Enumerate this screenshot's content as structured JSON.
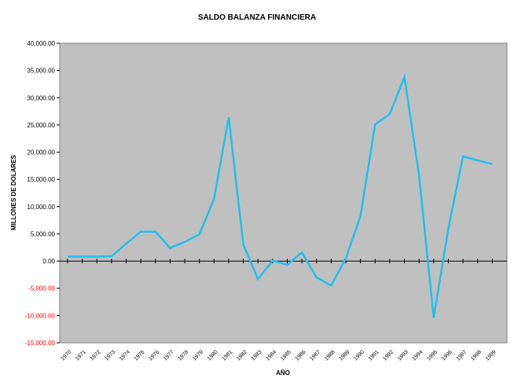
{
  "chart_data": {
    "type": "line",
    "title": "SALDO BALANZA FINANCIERA",
    "xlabel": "AÑO",
    "ylabel": "MILLONES DE DOLARES",
    "ylim": [
      -15000,
      40000
    ],
    "y_ticks": [
      -15000,
      -10000,
      -5000,
      0,
      5000,
      10000,
      15000,
      20000,
      25000,
      30000,
      35000,
      40000
    ],
    "y_tick_labels": [
      "-15,000.00",
      "-10,000.00",
      "-5,000.00",
      "0.00",
      "5,000.00",
      "10,000.00",
      "15,000.00",
      "20,000.00",
      "25,000.00",
      "30,000.00",
      "35,000.00",
      "40,000.00"
    ],
    "categories": [
      "1970",
      "1971",
      "1972",
      "1973",
      "1974",
      "1975",
      "1976",
      "1977",
      "1978",
      "1979",
      "1980",
      "1981",
      "1982",
      "1983",
      "1984",
      "1985",
      "1986",
      "1987",
      "1988",
      "1989",
      "1990",
      "1991",
      "1992",
      "1993",
      "1994",
      "1995",
      "1996",
      "1997",
      "1998",
      "1999"
    ],
    "series": [
      {
        "values": [
          800,
          800,
          800,
          900,
          3200,
          5400,
          5400,
          2400,
          3500,
          4900,
          11400,
          26400,
          3000,
          -3300,
          100,
          -700,
          1600,
          -3000,
          -4500,
          500,
          8300,
          25100,
          27000,
          33800,
          15700,
          -10400,
          6000,
          19200,
          18500,
          17800
        ]
      }
    ],
    "colors": {
      "line": "#1fc0ef",
      "plot_background": "#c0c0c0",
      "negative_tick_label": "#ff0000",
      "positive_tick_label": "#000000"
    },
    "grid": false,
    "legend": "none"
  }
}
